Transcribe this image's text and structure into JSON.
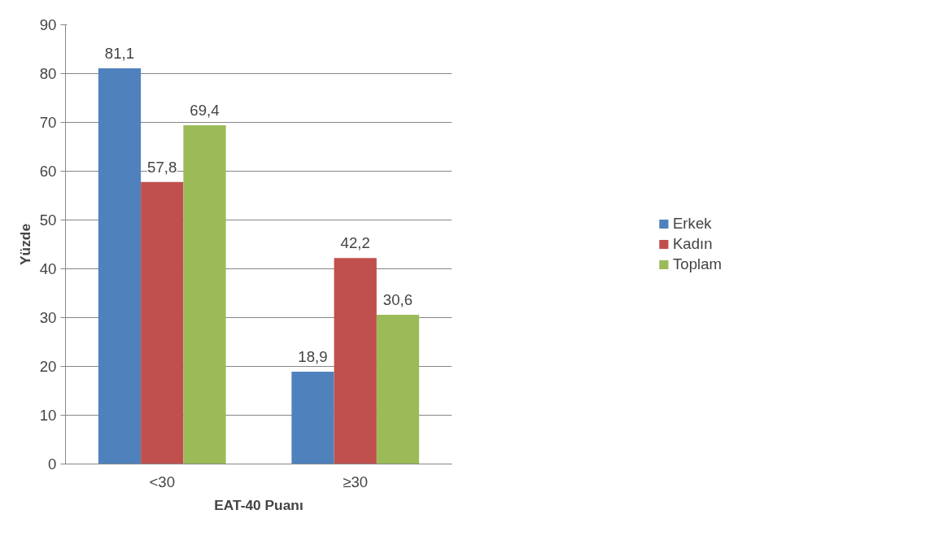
{
  "chart_data": {
    "type": "bar",
    "xlabel": "EAT-40 Puanı",
    "ylabel": "Yüzde",
    "categories": [
      "<30",
      "≥30"
    ],
    "series": [
      {
        "name": "Erkek",
        "color": "#4f81bd",
        "values": [
          81.1,
          18.9
        ],
        "value_labels": [
          "81,1",
          "18,9"
        ]
      },
      {
        "name": "Kadın",
        "color": "#c0504d",
        "values": [
          57.8,
          42.2
        ],
        "value_labels": [
          "57,8",
          "42,2"
        ]
      },
      {
        "name": "Toplam",
        "color": "#9bbb59",
        "values": [
          69.4,
          30.6
        ],
        "value_labels": [
          "69,4",
          "30,6"
        ]
      }
    ],
    "ylim": [
      0,
      90
    ],
    "yticks": [
      0,
      10,
      20,
      30,
      40,
      50,
      60,
      70,
      80,
      90
    ],
    "grid": "y",
    "legend": "right"
  }
}
